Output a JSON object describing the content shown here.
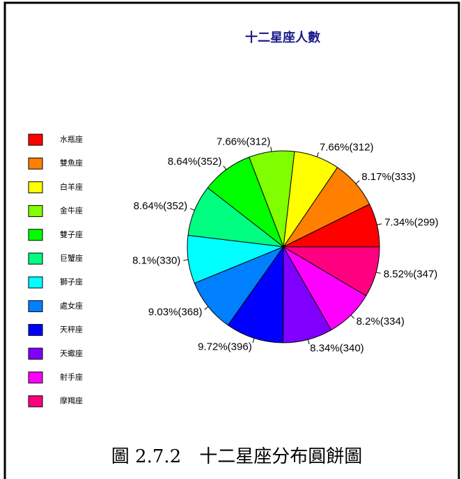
{
  "chart_data": {
    "type": "pie",
    "title": "十二星座人數",
    "categories": [
      "水瓶座",
      "雙魚座",
      "白羊座",
      "金牛座",
      "雙子座",
      "巨蟹座",
      "獅子座",
      "處女座",
      "天秤座",
      "天蠍座",
      "射手座",
      "摩羯座"
    ],
    "values": [
      299,
      333,
      312,
      312,
      352,
      352,
      330,
      368,
      396,
      340,
      334,
      347
    ],
    "value_labels": [
      "7.34%(299)",
      "8.17%(333)",
      "7.66%(312)",
      "7.66%(312)",
      "8.64%(352)",
      "8.64%(352)",
      "8.1%(330)",
      "9.03%(368)",
      "9.72%(396)",
      "8.34%(340)",
      "8.2%(334)",
      "8.52%(347)"
    ],
    "colors": [
      "#FF0000",
      "#FF8000",
      "#FFFF00",
      "#80FF00",
      "#00FF00",
      "#00FF80",
      "#00FFFF",
      "#0080FF",
      "#0000FF",
      "#8000FF",
      "#FF00FF",
      "#FF0080"
    ],
    "legend": "left"
  },
  "caption": "圖 2.7.2　十二星座分布圓餅圖"
}
